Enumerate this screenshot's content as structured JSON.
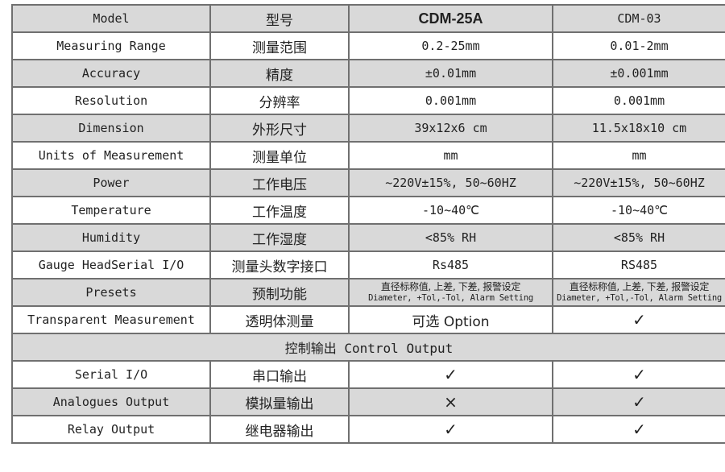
{
  "table": {
    "header": {
      "label_en": "Model",
      "label_cn": "型号",
      "model_a": "CDM-25A",
      "model_b": "CDM-03"
    },
    "rows": [
      {
        "en": "Measuring Range",
        "cn": "测量范围",
        "a": "0.2-25mm",
        "b": "0.01-2mm"
      },
      {
        "en": "Accuracy",
        "cn": "精度",
        "a": "±0.01mm",
        "b": "±0.001mm"
      },
      {
        "en": "Resolution",
        "cn": "分辨率",
        "a": "0.001mm",
        "b": "0.001mm"
      },
      {
        "en": "Dimension",
        "cn": "外形尺寸",
        "a": "39x12x6 cm",
        "b": "11.5x18x10 cm"
      },
      {
        "en": "Units of Measurement",
        "cn": "测量单位",
        "a": "mm",
        "b": "mm"
      },
      {
        "en": "Power",
        "cn": "工作电压",
        "a": "~220V±15%, 50~60HZ",
        "b": "~220V±15%, 50~60HZ"
      },
      {
        "en": "Temperature",
        "cn": "工作温度",
        "a": "-10~40℃",
        "b": "-10~40℃"
      },
      {
        "en": "Humidity",
        "cn": "工作湿度",
        "a": "<85% RH",
        "b": "<85% RH"
      },
      {
        "en": "Gauge HeadSerial I/O",
        "cn": "测量头数字接口",
        "a": "Rs485",
        "b": "RS485"
      }
    ],
    "presets": {
      "en": "Presets",
      "cn": "预制功能",
      "a_cn": "直径标称值, 上差, 下差, 报警设定",
      "a_en": "Diameter, +Tol,-Tol, Alarm Setting",
      "b_cn": "直径标称值, 上差, 下差, 报警设定",
      "b_en": "Diameter, +Tol,-Tol, Alarm Setting"
    },
    "transparent": {
      "en": "Transparent Measurement",
      "cn": "透明体测量",
      "a": "可选  Option",
      "b": "✓"
    },
    "section_title": "控制输出 Control Output",
    "outputs": [
      {
        "en": "Serial I/O",
        "cn": "串口输出",
        "a": "✓",
        "b": "✓"
      },
      {
        "en": "Analogues Output",
        "cn": "模拟量输出",
        "a": "×",
        "b": "✓"
      },
      {
        "en": "Relay Output",
        "cn": "继电器输出",
        "a": "✓",
        "b": "✓"
      }
    ]
  },
  "colors": {
    "row_shade": "#d9d9d9",
    "border": "#707070"
  }
}
